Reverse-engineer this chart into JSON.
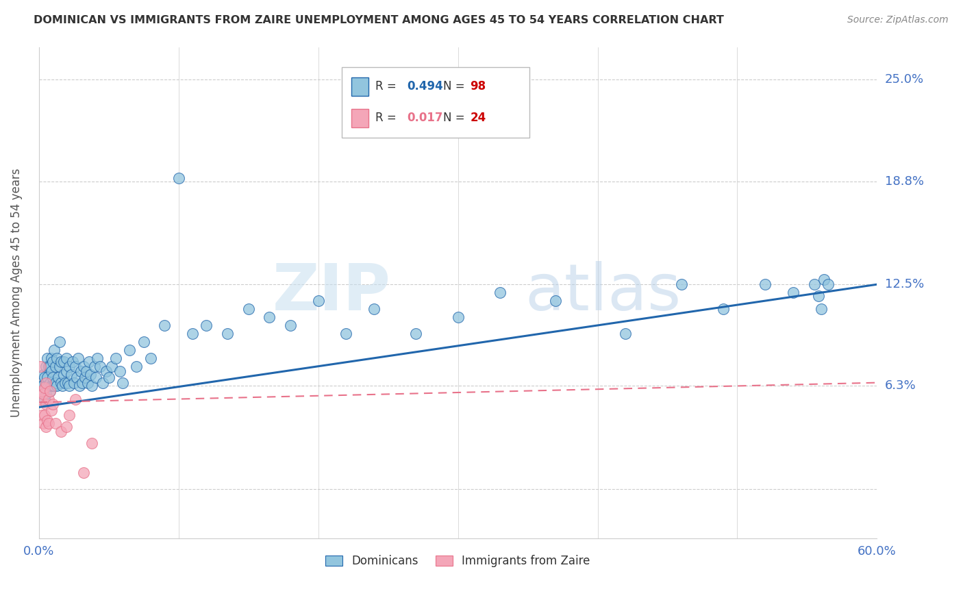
{
  "title": "DOMINICAN VS IMMIGRANTS FROM ZAIRE UNEMPLOYMENT AMONG AGES 45 TO 54 YEARS CORRELATION CHART",
  "source": "Source: ZipAtlas.com",
  "ylabel": "Unemployment Among Ages 45 to 54 years",
  "xlim": [
    0.0,
    0.6
  ],
  "ylim": [
    -0.03,
    0.27
  ],
  "yticks": [
    0.0,
    0.063,
    0.125,
    0.188,
    0.25
  ],
  "ytick_labels": [
    "",
    "6.3%",
    "12.5%",
    "18.8%",
    "25.0%"
  ],
  "xtick_labels": [
    "0.0%",
    "60.0%"
  ],
  "xticks": [
    0.0,
    0.6
  ],
  "color_blue": "#92c5de",
  "color_pink": "#f4a6b8",
  "color_blue_line": "#2166ac",
  "color_pink_line": "#e8728a",
  "color_title": "#333333",
  "color_source": "#888888",
  "color_axis_labels": "#4472c4",
  "watermark_zip": "ZIP",
  "watermark_atlas": "atlas",
  "dominican_x": [
    0.002,
    0.003,
    0.003,
    0.004,
    0.004,
    0.005,
    0.005,
    0.005,
    0.006,
    0.006,
    0.006,
    0.007,
    0.007,
    0.008,
    0.008,
    0.008,
    0.009,
    0.009,
    0.009,
    0.01,
    0.01,
    0.01,
    0.011,
    0.011,
    0.012,
    0.012,
    0.013,
    0.013,
    0.014,
    0.015,
    0.015,
    0.016,
    0.016,
    0.017,
    0.018,
    0.018,
    0.019,
    0.02,
    0.02,
    0.021,
    0.022,
    0.022,
    0.023,
    0.024,
    0.025,
    0.026,
    0.027,
    0.028,
    0.029,
    0.03,
    0.031,
    0.032,
    0.033,
    0.034,
    0.035,
    0.036,
    0.037,
    0.038,
    0.04,
    0.041,
    0.042,
    0.044,
    0.046,
    0.048,
    0.05,
    0.052,
    0.055,
    0.058,
    0.06,
    0.065,
    0.07,
    0.075,
    0.08,
    0.09,
    0.1,
    0.11,
    0.12,
    0.135,
    0.15,
    0.165,
    0.18,
    0.2,
    0.22,
    0.24,
    0.27,
    0.3,
    0.33,
    0.37,
    0.42,
    0.46,
    0.49,
    0.52,
    0.54,
    0.555,
    0.558,
    0.56,
    0.562,
    0.565
  ],
  "dominican_y": [
    0.063,
    0.063,
    0.07,
    0.055,
    0.068,
    0.063,
    0.058,
    0.075,
    0.063,
    0.068,
    0.08,
    0.063,
    0.075,
    0.06,
    0.065,
    0.075,
    0.063,
    0.072,
    0.08,
    0.063,
    0.068,
    0.078,
    0.063,
    0.085,
    0.065,
    0.075,
    0.063,
    0.08,
    0.068,
    0.075,
    0.09,
    0.065,
    0.078,
    0.063,
    0.07,
    0.078,
    0.065,
    0.072,
    0.08,
    0.065,
    0.075,
    0.063,
    0.07,
    0.078,
    0.065,
    0.075,
    0.068,
    0.08,
    0.063,
    0.072,
    0.065,
    0.075,
    0.068,
    0.072,
    0.065,
    0.078,
    0.07,
    0.063,
    0.075,
    0.068,
    0.08,
    0.075,
    0.065,
    0.072,
    0.068,
    0.075,
    0.08,
    0.072,
    0.065,
    0.085,
    0.075,
    0.09,
    0.08,
    0.1,
    0.19,
    0.095,
    0.1,
    0.095,
    0.11,
    0.105,
    0.1,
    0.115,
    0.095,
    0.11,
    0.095,
    0.105,
    0.12,
    0.115,
    0.095,
    0.125,
    0.11,
    0.125,
    0.12,
    0.125,
    0.118,
    0.11,
    0.128,
    0.125
  ],
  "zaire_x": [
    0.001,
    0.001,
    0.002,
    0.002,
    0.003,
    0.003,
    0.004,
    0.004,
    0.005,
    0.005,
    0.005,
    0.006,
    0.007,
    0.007,
    0.008,
    0.009,
    0.01,
    0.012,
    0.016,
    0.02,
    0.022,
    0.026,
    0.032,
    0.038
  ],
  "zaire_y": [
    0.075,
    0.055,
    0.045,
    0.06,
    0.04,
    0.058,
    0.045,
    0.062,
    0.038,
    0.052,
    0.065,
    0.042,
    0.055,
    0.04,
    0.06,
    0.048,
    0.052,
    0.04,
    0.035,
    0.038,
    0.045,
    0.055,
    0.01,
    0.028
  ]
}
